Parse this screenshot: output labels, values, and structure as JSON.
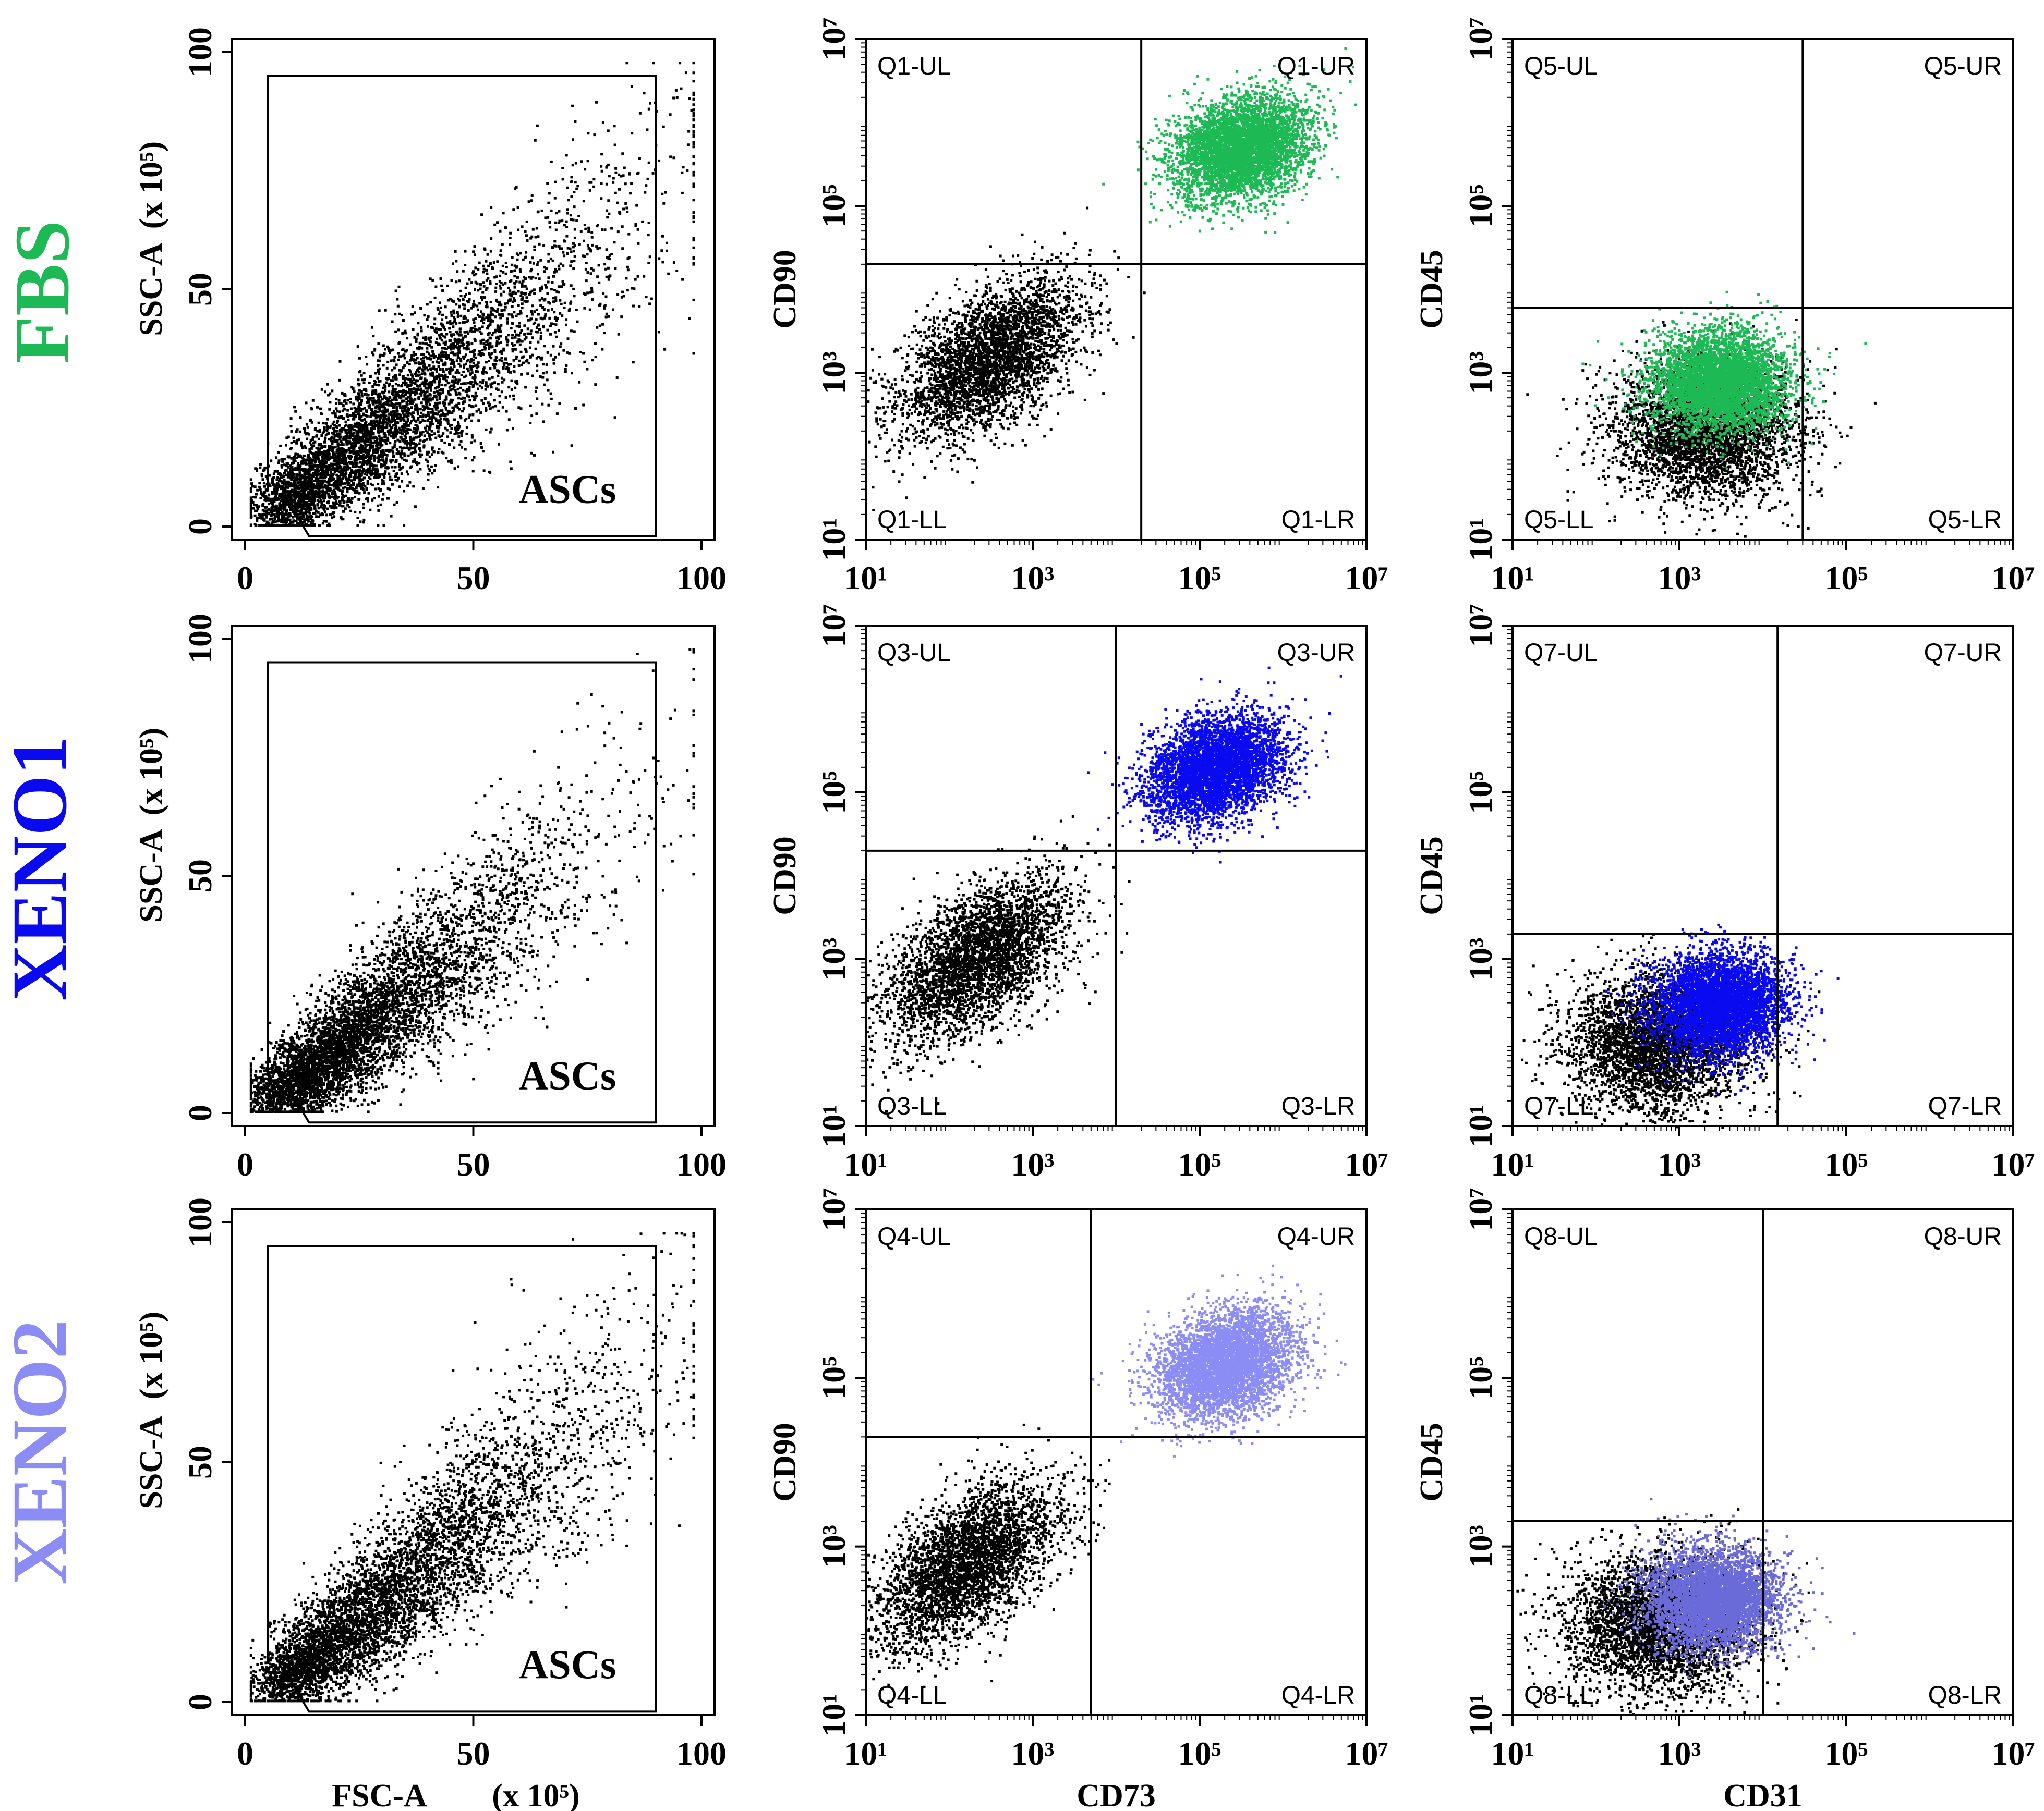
{
  "rows": [
    {
      "label": "FBS",
      "color": "#1db954"
    },
    {
      "label": "XENO1",
      "color": "#0a0af0"
    },
    {
      "label": "XENO2",
      "color": "#8c8cf5"
    }
  ],
  "chart_data": [
    {
      "id": "fbs-scatter",
      "type": "scatter",
      "title": "",
      "xlabel": "",
      "ylabel": "SSC-A",
      "y_unit": "(x 10⁵)",
      "xlim": [
        0,
        100
      ],
      "ylim": [
        0,
        100
      ],
      "x_ticks": [
        "0",
        "50",
        "100"
      ],
      "y_ticks": [
        "0",
        "50",
        "100"
      ],
      "gate_label": "ASCs",
      "dot_color": "#000000"
    },
    {
      "id": "fbs-cd90-cd73",
      "type": "scatter",
      "xlabel": "",
      "ylabel": "CD90",
      "x_scale": "log",
      "xlim": [
        10,
        10000000
      ],
      "ylim": [
        10,
        10000000
      ],
      "x_ticks": [
        "10¹",
        "10³",
        "10⁵",
        "10⁷"
      ],
      "y_ticks": [
        "10¹",
        "10³",
        "10⁵",
        "10⁷"
      ],
      "quadrants": [
        "Q1-UL",
        "Q1-UR",
        "Q1-LL",
        "Q1-LR"
      ],
      "x_gate": 20000,
      "y_gate": 20000,
      "series_color": "#1db954",
      "pos_center": [
        300000,
        500000
      ],
      "neg_center": [
        300,
        1500
      ]
    },
    {
      "id": "fbs-cd45-cd31",
      "type": "scatter",
      "xlabel": "",
      "ylabel": "CD45",
      "x_scale": "log",
      "xlim": [
        10,
        10000000
      ],
      "ylim": [
        10,
        10000000
      ],
      "x_ticks": [
        "10¹",
        "10³",
        "10⁵",
        "10⁷"
      ],
      "y_ticks": [
        "10¹",
        "10³",
        "10⁵",
        "10⁷"
      ],
      "quadrants": [
        "Q5-UL",
        "Q5-UR",
        "Q5-LL",
        "Q5-LR"
      ],
      "x_gate": 30000,
      "y_gate": 6000,
      "series_color": "#1db954",
      "pos_center": [
        3000,
        800
      ],
      "neg_center": [
        2000,
        200
      ]
    },
    {
      "id": "xeno1-scatter",
      "type": "scatter",
      "xlabel": "",
      "ylabel": "SSC-A",
      "y_unit": "(x 10⁵)",
      "xlim": [
        0,
        100
      ],
      "ylim": [
        0,
        100
      ],
      "x_ticks": [
        "0",
        "50",
        "100"
      ],
      "y_ticks": [
        "0",
        "50",
        "100"
      ],
      "gate_label": "ASCs",
      "dot_color": "#000000"
    },
    {
      "id": "xeno1-cd90-cd73",
      "type": "scatter",
      "xlabel": "",
      "ylabel": "CD90",
      "x_scale": "log",
      "xlim": [
        10,
        10000000
      ],
      "ylim": [
        10,
        10000000
      ],
      "x_ticks": [
        "10¹",
        "10³",
        "10⁵",
        "10⁷"
      ],
      "y_ticks": [
        "10¹",
        "10³",
        "10⁵",
        "10⁷"
      ],
      "quadrants": [
        "Q3-UL",
        "Q3-UR",
        "Q3-LL",
        "Q3-LR"
      ],
      "x_gate": 10000,
      "y_gate": 20000,
      "series_color": "#0a0af0",
      "pos_center": [
        150000,
        200000
      ],
      "neg_center": [
        200,
        1000
      ]
    },
    {
      "id": "xeno1-cd45-cd31",
      "type": "scatter",
      "xlabel": "",
      "ylabel": "CD45",
      "x_scale": "log",
      "xlim": [
        10,
        10000000
      ],
      "ylim": [
        10,
        10000000
      ],
      "x_ticks": [
        "10¹",
        "10³",
        "10⁵",
        "10⁷"
      ],
      "y_ticks": [
        "10¹",
        "10³",
        "10⁵",
        "10⁷"
      ],
      "quadrants": [
        "Q7-UL",
        "Q7-UR",
        "Q7-LL",
        "Q7-LR"
      ],
      "x_gate": 15000,
      "y_gate": 2000,
      "series_color": "#0a0af0",
      "pos_center": [
        3000,
        300
      ],
      "neg_center": [
        500,
        100
      ]
    },
    {
      "id": "xeno2-scatter",
      "type": "scatter",
      "xlabel": "FSC-A",
      "x_unit": "(x 10⁵)",
      "ylabel": "SSC-A",
      "y_unit": "(x 10⁵)",
      "xlim": [
        0,
        100
      ],
      "ylim": [
        0,
        100
      ],
      "x_ticks": [
        "0",
        "50",
        "100"
      ],
      "y_ticks": [
        "0",
        "50",
        "100"
      ],
      "gate_label": "ASCs",
      "dot_color": "#000000"
    },
    {
      "id": "xeno2-cd90-cd73",
      "type": "scatter",
      "xlabel": "CD73",
      "ylabel": "CD90",
      "x_scale": "log",
      "xlim": [
        10,
        10000000
      ],
      "ylim": [
        10,
        10000000
      ],
      "x_ticks": [
        "10¹",
        "10³",
        "10⁵",
        "10⁷"
      ],
      "y_ticks": [
        "10¹",
        "10³",
        "10⁵",
        "10⁷"
      ],
      "quadrants": [
        "Q4-UL",
        "Q4-UR",
        "Q4-LL",
        "Q4-LR"
      ],
      "x_gate": 5000,
      "y_gate": 20000,
      "series_color": "#8c8cf5",
      "pos_center": [
        200000,
        150000
      ],
      "neg_center": [
        150,
        600
      ]
    },
    {
      "id": "xeno2-cd45-cd31",
      "type": "scatter",
      "xlabel": "CD31",
      "ylabel": "CD45",
      "x_scale": "log",
      "xlim": [
        10,
        10000000
      ],
      "ylim": [
        10,
        10000000
      ],
      "x_ticks": [
        "10¹",
        "10³",
        "10⁵",
        "10⁷"
      ],
      "y_ticks": [
        "10¹",
        "10³",
        "10⁵",
        "10⁷"
      ],
      "quadrants": [
        "Q8-UL",
        "Q8-UR",
        "Q8-LL",
        "Q8-LR"
      ],
      "x_gate": 10000,
      "y_gate": 2000,
      "series_color": "#6a6ad8",
      "pos_center": [
        2500,
        250
      ],
      "neg_center": [
        500,
        120
      ]
    }
  ]
}
